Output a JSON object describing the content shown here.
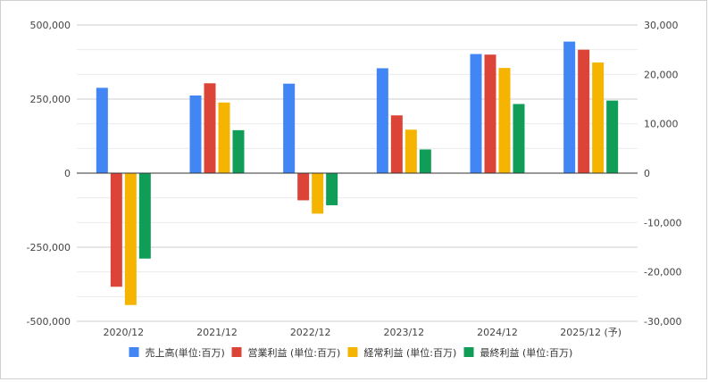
{
  "chart_data": {
    "type": "bar",
    "categories": [
      "2020/12",
      "2021/12",
      "2022/12",
      "2023/12",
      "2024/12",
      "2025/12 (予)"
    ],
    "series": [
      {
        "name": "売上高(単位:百万)",
        "axis": "left",
        "color": "#4285f4",
        "values": [
          288000,
          262000,
          302000,
          354000,
          402000,
          444000
        ]
      },
      {
        "name": "営業利益 (単位:百万)",
        "axis": "right",
        "color": "#db4437",
        "values": [
          -23000,
          18200,
          -5500,
          11700,
          24000,
          25000
        ]
      },
      {
        "name": "経常利益 (単位:百万)",
        "axis": "right",
        "color": "#f4b400",
        "values": [
          -26700,
          14300,
          -8200,
          8800,
          21300,
          22400
        ]
      },
      {
        "name": "最終利益 (単位:百万)",
        "axis": "right",
        "color": "#0f9d58",
        "values": [
          -17300,
          8700,
          -6500,
          4800,
          14000,
          14700
        ]
      }
    ],
    "left_axis": {
      "ylim": [
        -500000,
        500000
      ],
      "ticks": [
        500000,
        250000,
        0,
        -250000,
        -500000
      ],
      "tick_labels": [
        "500,000",
        "250,000",
        "0",
        "-250,000",
        "-500,000"
      ]
    },
    "right_axis": {
      "ylim": [
        -30000,
        30000
      ],
      "ticks": [
        30000,
        20000,
        10000,
        0,
        -10000,
        -20000,
        -30000
      ],
      "tick_labels": [
        "30,000",
        "20,000",
        "10,000",
        "0",
        "-10,000",
        "-20,000",
        "-30,000"
      ]
    },
    "grid": true,
    "legend_position": "bottom",
    "title": "",
    "xlabel": "",
    "ylabel": ""
  }
}
